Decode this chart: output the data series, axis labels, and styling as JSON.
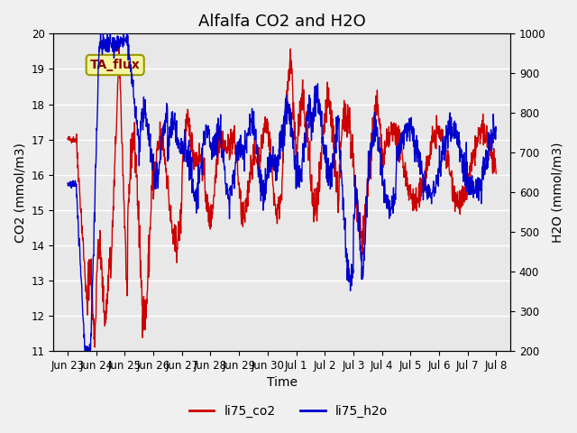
{
  "title": "Alfalfa CO2 and H2O",
  "xlabel": "Time",
  "ylabel_left": "CO2 (mmol/m3)",
  "ylabel_right": "H2O (mmol/m3)",
  "ylim_left": [
    11.0,
    20.0
  ],
  "ylim_right": [
    200,
    1000
  ],
  "yticks_left": [
    11.0,
    12.0,
    13.0,
    14.0,
    15.0,
    16.0,
    17.0,
    18.0,
    19.0,
    20.0
  ],
  "yticks_right": [
    200,
    300,
    400,
    500,
    600,
    700,
    800,
    900,
    1000
  ],
  "xtick_labels": [
    "Jun 23",
    "Jun 24",
    "Jun 25",
    "Jun 26",
    "Jun 27",
    "Jun 28",
    "Jun 29",
    "Jun 30",
    "Jul 1",
    "Jul 2",
    "Jul 3",
    "Jul 4",
    "Jul 5",
    "Jul 6",
    "Jul 7",
    "Jul 8"
  ],
  "annotation_text": "TA_flux",
  "bg_color": "#e8e8e8",
  "line_co2_color": "#cc0000",
  "line_h2o_color": "#0000cc",
  "legend_co2": "li75_co2",
  "legend_h2o": "li75_h2o",
  "grid_color": "white",
  "title_fontsize": 13,
  "label_fontsize": 10,
  "tick_fontsize": 8.5
}
